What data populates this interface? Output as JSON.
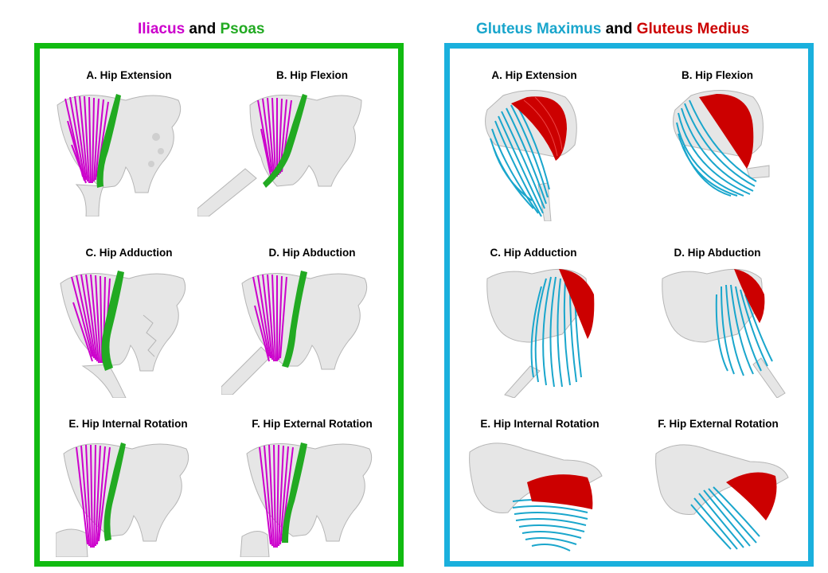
{
  "colors": {
    "iliacus": "#cc00cc",
    "psoas": "#22aa22",
    "gmax": "#1aa6cc",
    "gmed": "#cc0000",
    "left_border": "#11bb11",
    "right_border": "#1ab0dd",
    "bone": "#e6e6e6"
  },
  "left_title": {
    "part1": "Iliacus",
    "joiner": " and ",
    "part2": "Psoas"
  },
  "right_title": {
    "part1": "Gluteus Maximus",
    "joiner": " and ",
    "part2": "Gluteus Medius"
  },
  "left_panel": {
    "captions": [
      "A.  Hip Extension",
      "B. Hip Flexion",
      "C. Hip Adduction",
      "D. Hip Abduction",
      "E. Hip Internal Rotation",
      "F. Hip External Rotation"
    ]
  },
  "right_panel": {
    "captions": [
      "A. Hip Extension",
      "B. Hip Flexion",
      "C. Hip Adduction",
      "D. Hip Abduction",
      "E. Hip Internal Rotation",
      "F. Hip External Rotation"
    ]
  }
}
